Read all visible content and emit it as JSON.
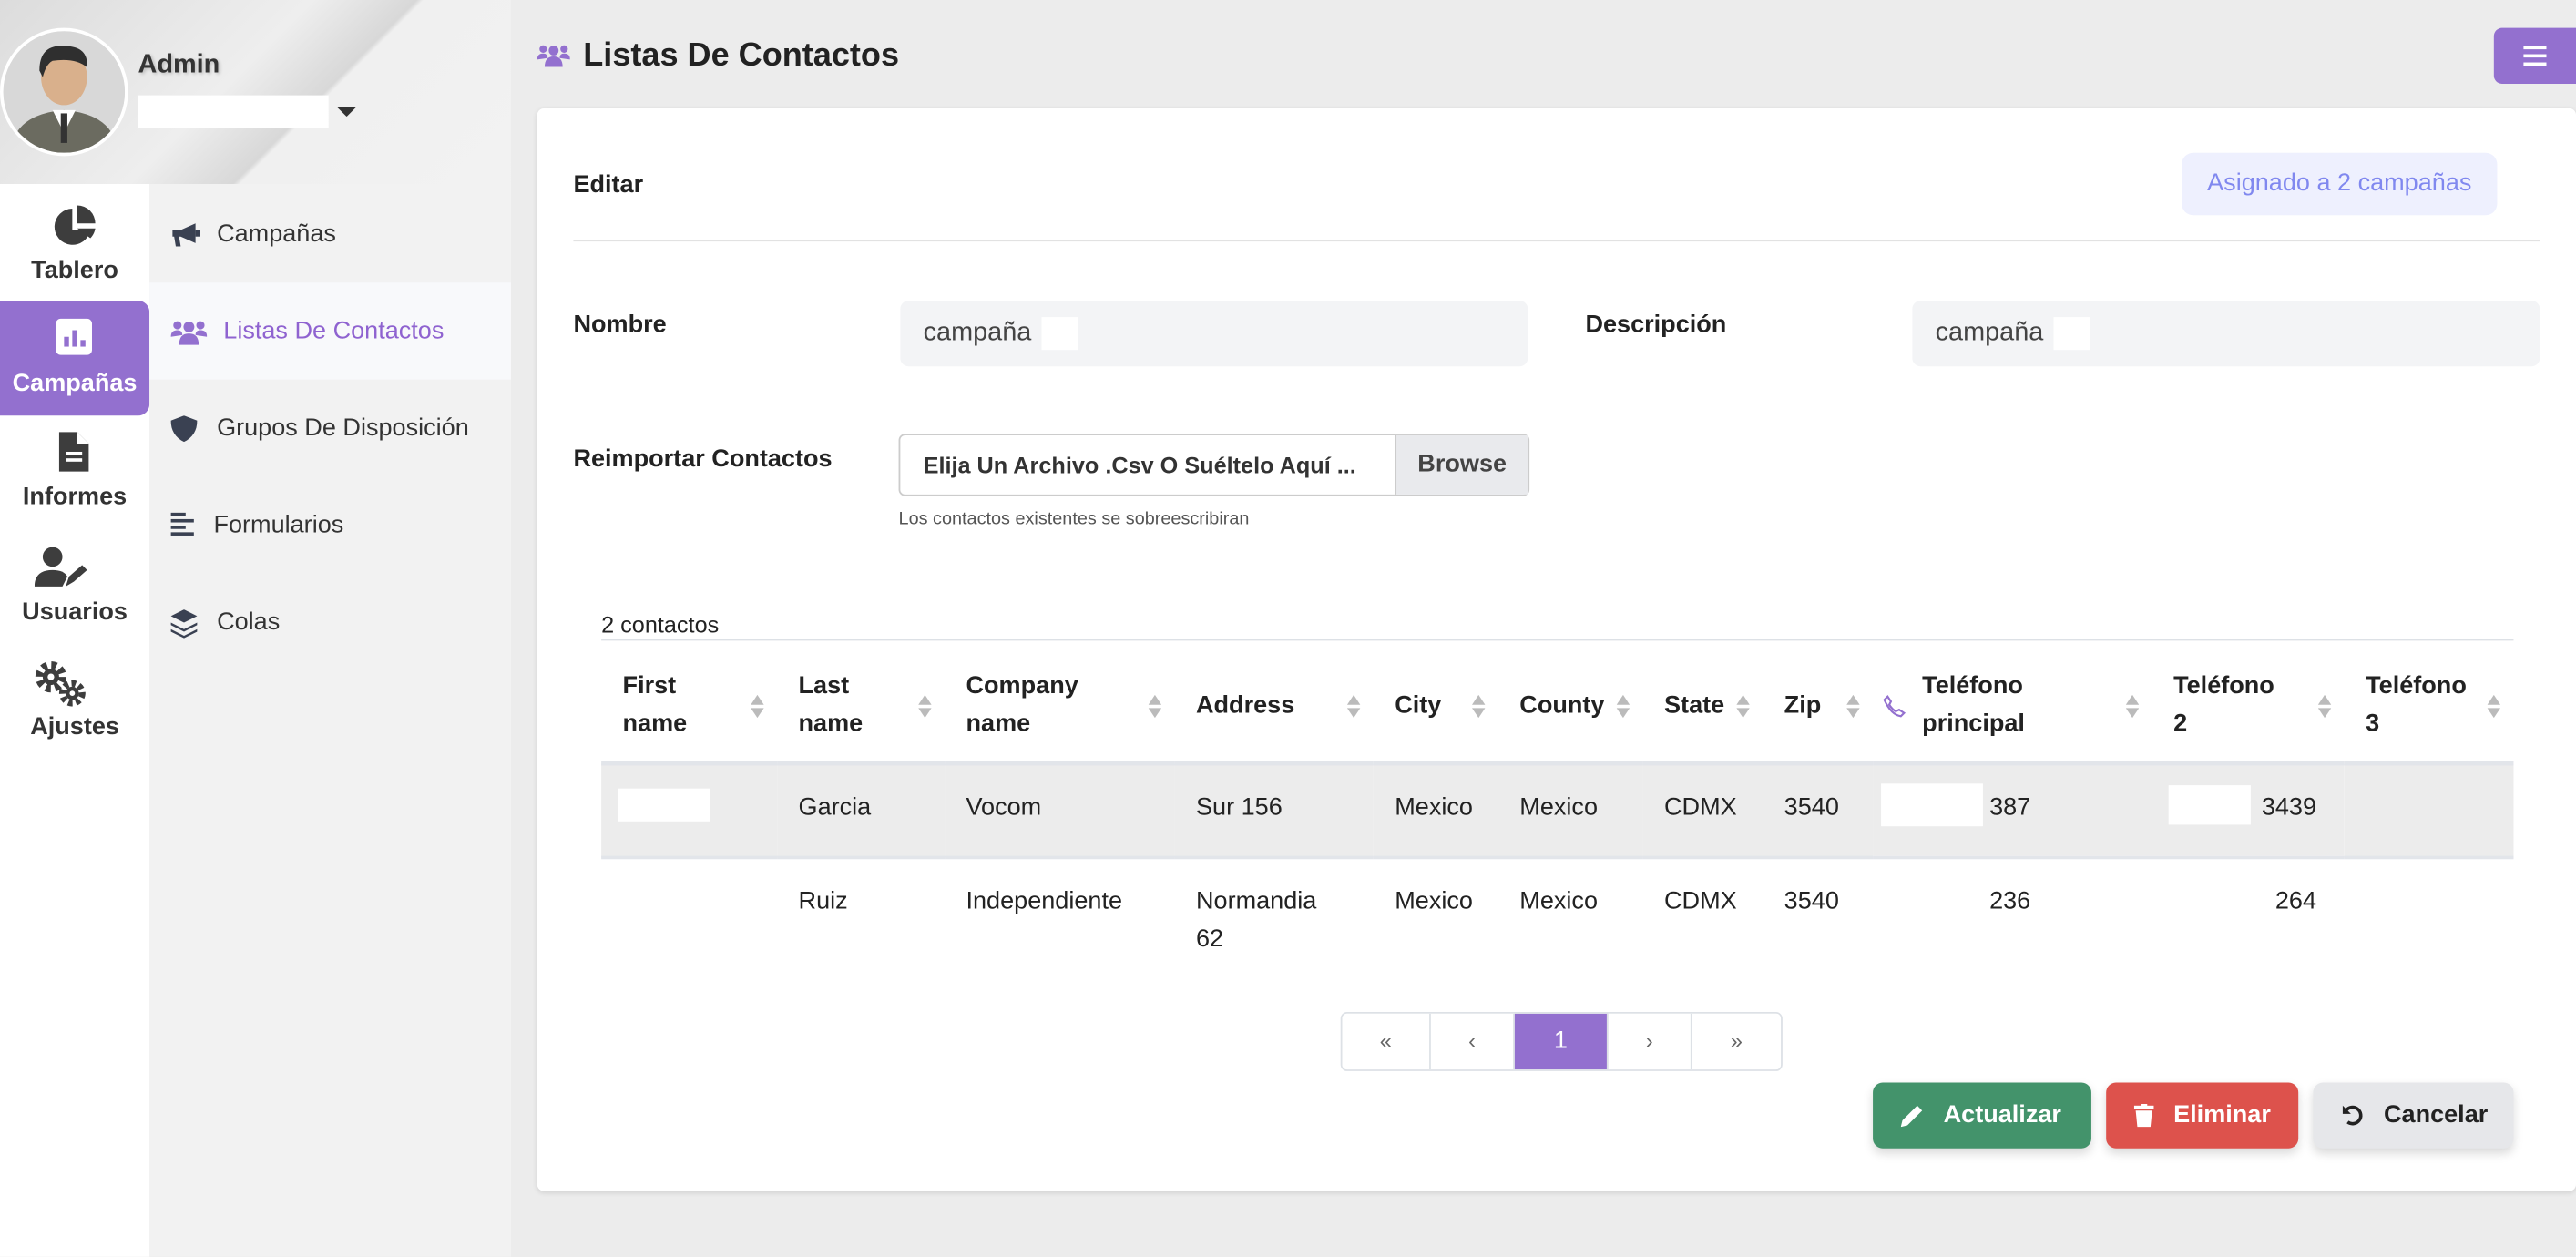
{
  "profile": {
    "name": "Admin"
  },
  "rail": [
    {
      "label": "Tablero",
      "icon": "pie-chart-icon"
    },
    {
      "label": "Campañas",
      "icon": "chart-bar-icon",
      "active": true
    },
    {
      "label": "Informes",
      "icon": "file-icon"
    },
    {
      "label": "Usuarios",
      "icon": "user-edit-icon"
    },
    {
      "label": "Ajustes",
      "icon": "cogs-icon"
    }
  ],
  "submenu": [
    {
      "label": "Campañas",
      "icon": "bullhorn-icon"
    },
    {
      "label": "Listas De Contactos",
      "icon": "users-icon",
      "active": true
    },
    {
      "label": "Grupos De Disposición",
      "icon": "shield-icon"
    },
    {
      "label": "Formularios",
      "icon": "align-left-icon"
    },
    {
      "label": "Colas",
      "icon": "layers-icon"
    }
  ],
  "header": {
    "title": "Listas De Contactos"
  },
  "form": {
    "heading": "Editar",
    "badge": "Asignado a 2 campañas",
    "nombre_label": "Nombre",
    "nombre_value": "campaña",
    "descripcion_label": "Descripción",
    "descripcion_value": "campaña",
    "reimport_label": "Reimportar Contactos",
    "file_placeholder": "Elija Un Archivo .Csv O Suéltelo Aquí ...",
    "browse": "Browse",
    "hint": "Los contactos existentes se sobreescribiran"
  },
  "table": {
    "count": "2 contactos",
    "columns": [
      "First name",
      "Last name",
      "Company name",
      "Address",
      "City",
      "County",
      "State",
      "Zip",
      "Teléfono principal",
      "Teléfono 2",
      "Teléfono 3"
    ],
    "rows": [
      [
        "",
        "Garcia",
        "Vocom",
        "Sur 156",
        "Mexico",
        "Mexico",
        "CDMX",
        "3540",
        "387",
        "3439",
        ""
      ],
      [
        "",
        "Ruiz",
        "Independiente",
        "Normandia 62",
        "Mexico",
        "Mexico",
        "CDMX",
        "3540",
        "236",
        "264",
        ""
      ]
    ]
  },
  "pagination": {
    "first": "«",
    "prev": "‹",
    "current": "1",
    "next": "›",
    "last": "»"
  },
  "actions": {
    "update": "Actualizar",
    "delete": "Eliminar",
    "cancel": "Cancelar"
  },
  "colors": {
    "accent": "#9370cf",
    "update": "#43936b",
    "delete": "#dd524c",
    "cancel": "#e6e7ea",
    "badge_bg": "#eef0fe",
    "badge_text": "#8088ef"
  }
}
